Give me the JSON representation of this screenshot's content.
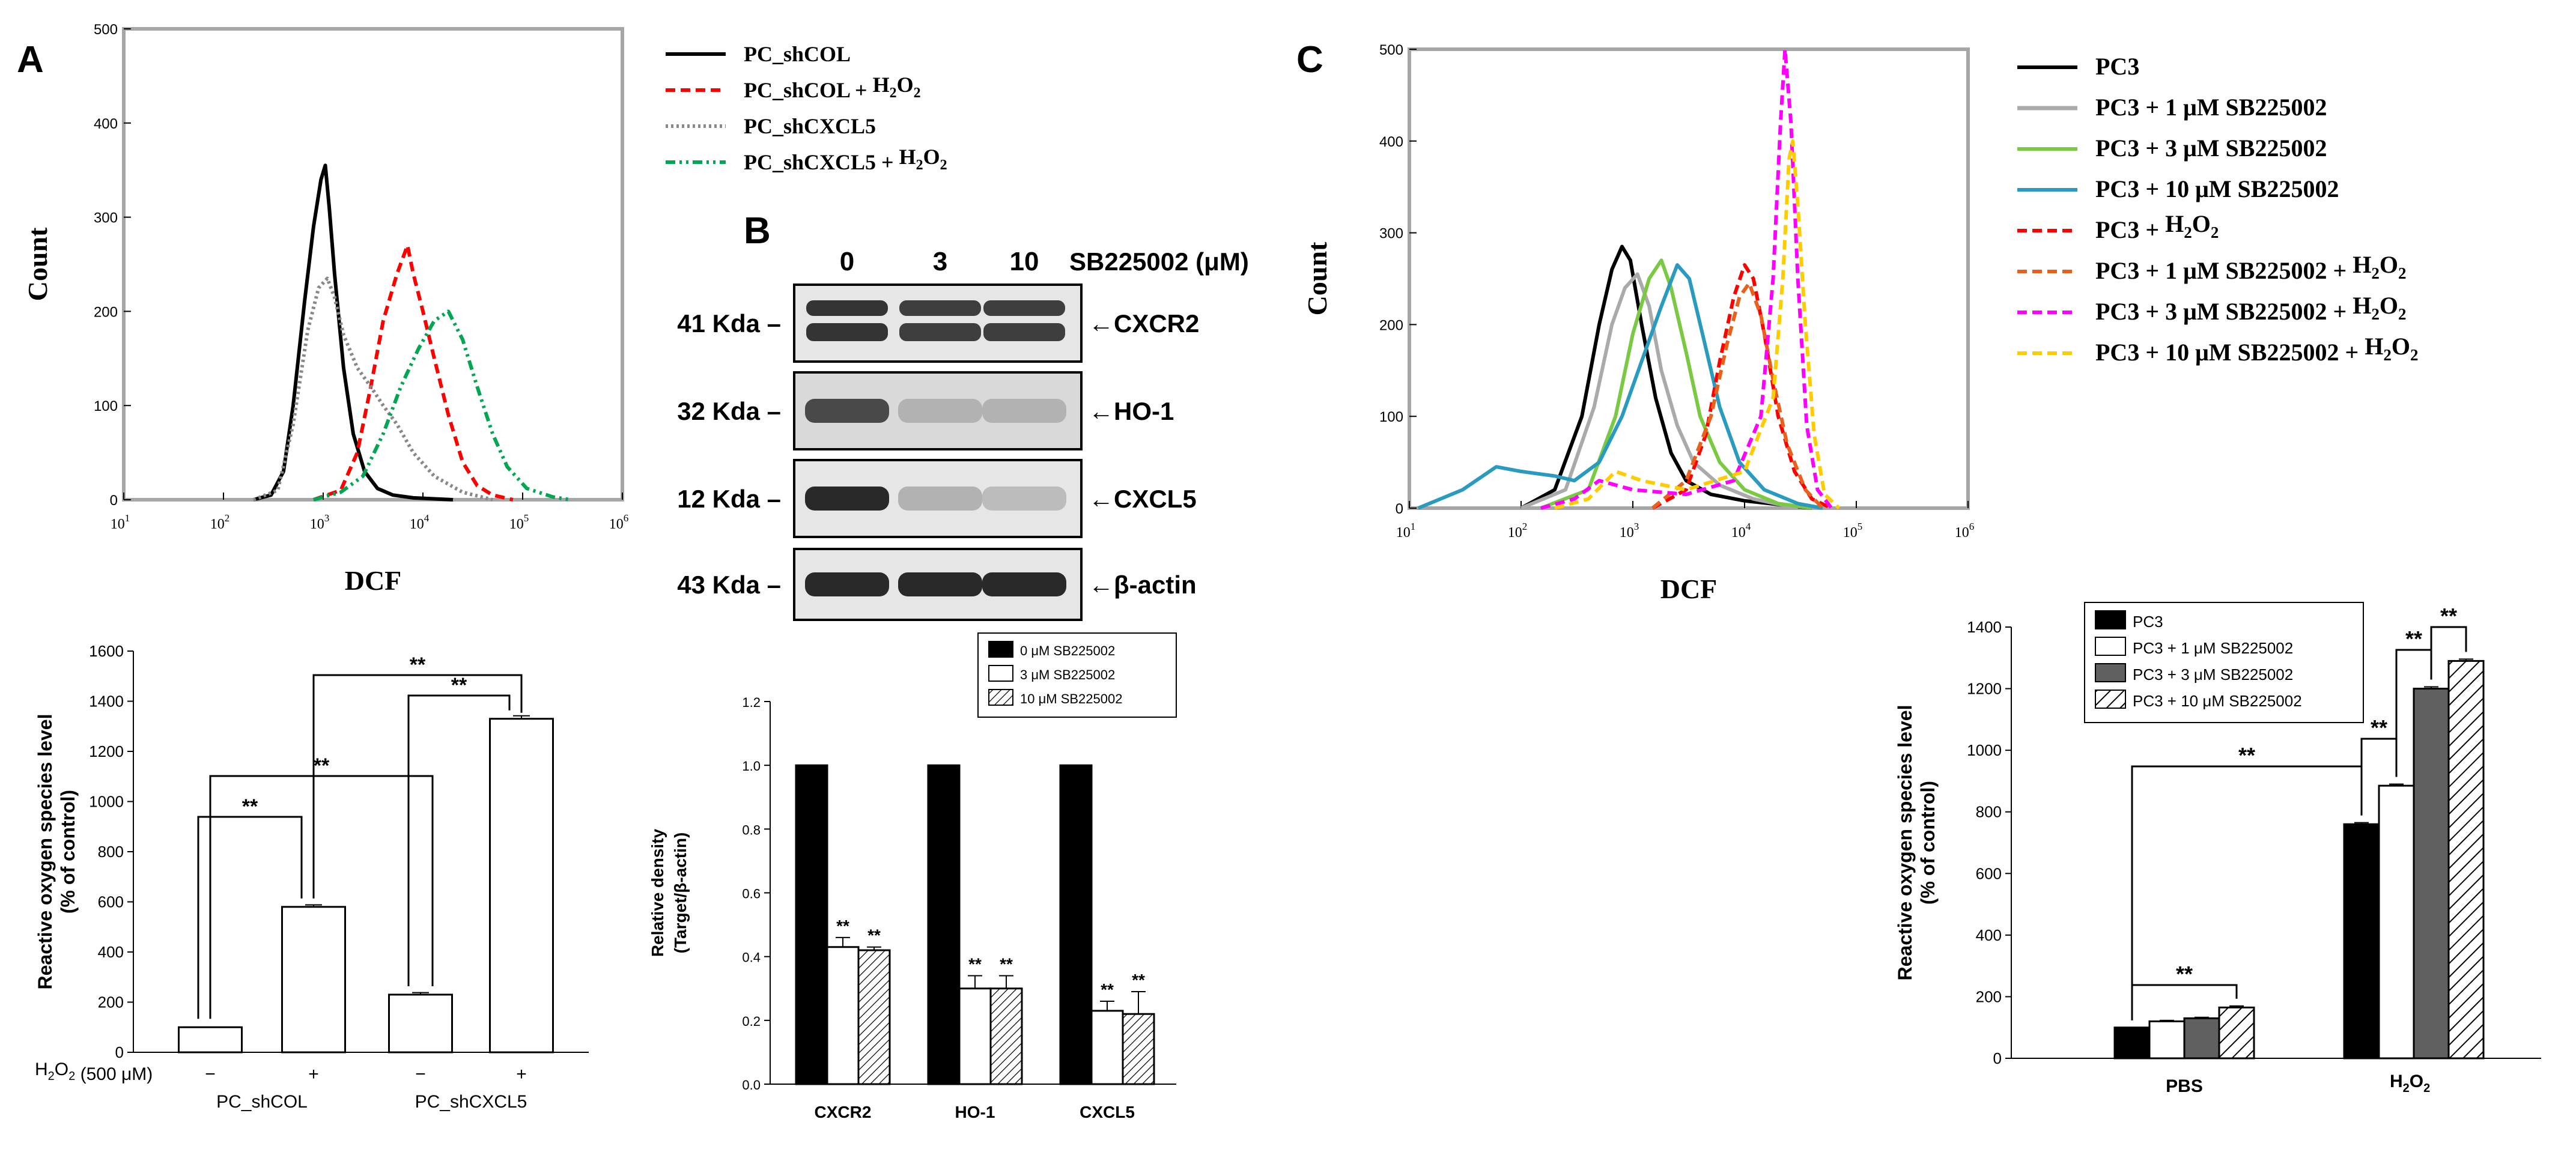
{
  "panel_letters": {
    "a": "A",
    "b": "B",
    "c": "C"
  },
  "colors": {
    "pc_shcol": "#000000",
    "pc_shcol_h2o2": "#ff0000",
    "pc_shcxcl5": "#888888",
    "pc_shcxcl5_h2o2": "#00a651",
    "pc3": "#000000",
    "pc3_1um": "#aaaaaa",
    "pc3_3um": "#7ac943",
    "pc3_10um": "#2a9bbf",
    "pc3_h2o2": "#ff0000",
    "pc3_1um_h2o2": "#e8601c",
    "pc3_3um_h2o2": "#ff00ff",
    "pc3_10um_h2o2": "#ffcc00"
  },
  "western_blot": {
    "header_label": "SB225002 (μM)",
    "lanes": [
      "0",
      "3",
      "10"
    ],
    "rows": [
      {
        "kda": "41 Kda",
        "target": "←CXCR2",
        "band_intensity": [
          0.85,
          0.8,
          0.8
        ]
      },
      {
        "kda": "32 Kda",
        "target": "←HO-1",
        "band_intensity": [
          0.75,
          0.25,
          0.25
        ]
      },
      {
        "kda": "12 Kda",
        "target": "←CXCL5",
        "band_intensity": [
          0.9,
          0.25,
          0.2
        ]
      },
      {
        "kda": "43 Kda",
        "target": "←β-actin",
        "band_intensity": [
          0.9,
          0.9,
          0.9
        ]
      }
    ]
  },
  "chart_data": [
    {
      "id": "A_histogram",
      "type": "line",
      "xlabel": "DCF",
      "ylabel": "Count",
      "x_scale": "log",
      "xlim": [
        10,
        1000000
      ],
      "ylim": [
        0,
        500
      ],
      "x_ticks": [
        10,
        100,
        1000,
        10000,
        100000,
        1000000
      ],
      "y_ticks": [
        0,
        100,
        200,
        300,
        400,
        500
      ],
      "legend_position": "right",
      "series": [
        {
          "name": "PC_shCOL",
          "style": "solid",
          "points": [
            [
              200,
              0
            ],
            [
              300,
              5
            ],
            [
              400,
              30
            ],
            [
              500,
              100
            ],
            [
              650,
              210
            ],
            [
              800,
              290
            ],
            [
              950,
              340
            ],
            [
              1050,
              355
            ],
            [
              1150,
              310
            ],
            [
              1300,
              240
            ],
            [
              1600,
              140
            ],
            [
              2000,
              70
            ],
            [
              2600,
              30
            ],
            [
              3500,
              12
            ],
            [
              5000,
              5
            ],
            [
              8000,
              2
            ],
            [
              20000,
              0
            ]
          ]
        },
        {
          "name": "PC_shCOL + H2O2",
          "style": "dashed",
          "points": [
            [
              800,
              0
            ],
            [
              1500,
              10
            ],
            [
              2200,
              50
            ],
            [
              3000,
              120
            ],
            [
              4000,
              190
            ],
            [
              5500,
              240
            ],
            [
              7000,
              270
            ],
            [
              8000,
              240
            ],
            [
              10000,
              200
            ],
            [
              13000,
              150
            ],
            [
              18000,
              90
            ],
            [
              25000,
              40
            ],
            [
              35000,
              15
            ],
            [
              50000,
              5
            ],
            [
              80000,
              0
            ]
          ]
        },
        {
          "name": "PC_shCXCL5",
          "style": "dotted",
          "points": [
            [
              200,
              0
            ],
            [
              350,
              10
            ],
            [
              500,
              80
            ],
            [
              700,
              180
            ],
            [
              900,
              225
            ],
            [
              1100,
              235
            ],
            [
              1300,
              215
            ],
            [
              1600,
              175
            ],
            [
              2200,
              140
            ],
            [
              3000,
              120
            ],
            [
              4000,
              100
            ],
            [
              5500,
              80
            ],
            [
              8000,
              50
            ],
            [
              13000,
              25
            ],
            [
              25000,
              8
            ],
            [
              50000,
              0
            ]
          ]
        },
        {
          "name": "PC_shCXCL5 + H2O2",
          "style": "dashdot",
          "points": [
            [
              800,
              0
            ],
            [
              1500,
              8
            ],
            [
              2500,
              25
            ],
            [
              4000,
              70
            ],
            [
              6000,
              120
            ],
            [
              9000,
              160
            ],
            [
              13000,
              190
            ],
            [
              18000,
              200
            ],
            [
              25000,
              170
            ],
            [
              35000,
              120
            ],
            [
              50000,
              70
            ],
            [
              70000,
              35
            ],
            [
              110000,
              12
            ],
            [
              200000,
              3
            ],
            [
              300000,
              0
            ]
          ]
        }
      ]
    },
    {
      "id": "A_bar",
      "type": "bar",
      "ylabel": "Reactive oxygen species level (% of control)",
      "ylim": [
        0,
        1600
      ],
      "y_ticks": [
        0,
        200,
        400,
        600,
        800,
        1000,
        1200,
        1400,
        1600
      ],
      "treatment_label": "H2O2 (500 μM)",
      "treatment_signs": [
        "−",
        "+",
        "−",
        "+"
      ],
      "groups": [
        "PC_shCOL",
        "PC_shCXCL5"
      ],
      "values": [
        100,
        580,
        230,
        1330
      ],
      "errors": [
        0,
        8,
        8,
        12
      ],
      "significance": "**"
    },
    {
      "id": "B_density",
      "type": "bar",
      "ylabel": "Relative density (Target/β-actin)",
      "ylim": [
        0,
        1.2
      ],
      "y_ticks": [
        0.0,
        0.2,
        0.4,
        0.6,
        0.8,
        1.0,
        1.2
      ],
      "categories": [
        "CXCR2",
        "HO-1",
        "CXCL5"
      ],
      "legend_position": "top-right",
      "series": [
        {
          "name": "0 μM SB225002",
          "fill": "black",
          "values": [
            1.0,
            1.0,
            1.0
          ],
          "errors": [
            0,
            0,
            0
          ]
        },
        {
          "name": "3 μM SB225002",
          "fill": "white",
          "values": [
            0.43,
            0.3,
            0.23
          ],
          "errors": [
            0.03,
            0.04,
            0.03
          ]
        },
        {
          "name": "10 μM SB225002",
          "fill": "hatch",
          "values": [
            0.42,
            0.3,
            0.22
          ],
          "errors": [
            0.01,
            0.04,
            0.07
          ]
        }
      ],
      "significance": "**"
    },
    {
      "id": "C_histogram",
      "type": "line",
      "xlabel": "DCF",
      "ylabel": "Count",
      "x_scale": "log",
      "xlim": [
        10,
        1000000
      ],
      "ylim": [
        0,
        500
      ],
      "x_ticks": [
        10,
        100,
        1000,
        10000,
        100000,
        1000000
      ],
      "y_ticks": [
        0,
        100,
        200,
        300,
        400,
        500
      ],
      "legend_position": "right",
      "series": [
        {
          "name": "PC3",
          "style": "solid",
          "points": [
            [
              100,
              0
            ],
            [
              200,
              20
            ],
            [
              350,
              100
            ],
            [
              500,
              200
            ],
            [
              650,
              260
            ],
            [
              800,
              285
            ],
            [
              950,
              270
            ],
            [
              1200,
              200
            ],
            [
              1600,
              120
            ],
            [
              2200,
              60
            ],
            [
              3000,
              30
            ],
            [
              5000,
              15
            ],
            [
              10000,
              8
            ],
            [
              20000,
              4
            ],
            [
              40000,
              0
            ]
          ]
        },
        {
          "name": "PC3 + 1 μM SB225002",
          "style": "solid",
          "points": [
            [
              100,
              0
            ],
            [
              250,
              20
            ],
            [
              450,
              110
            ],
            [
              650,
              200
            ],
            [
              850,
              240
            ],
            [
              1100,
              255
            ],
            [
              1400,
              220
            ],
            [
              1800,
              150
            ],
            [
              2500,
              90
            ],
            [
              3500,
              50
            ],
            [
              6000,
              25
            ],
            [
              12000,
              10
            ],
            [
              30000,
              0
            ]
          ]
        },
        {
          "name": "PC3 + 3 μM SB225002",
          "style": "solid",
          "points": [
            [
              150,
              0
            ],
            [
              400,
              20
            ],
            [
              700,
              100
            ],
            [
              1000,
              190
            ],
            [
              1400,
              250
            ],
            [
              1800,
              270
            ],
            [
              2200,
              240
            ],
            [
              3000,
              170
            ],
            [
              4000,
              100
            ],
            [
              6000,
              50
            ],
            [
              10000,
              20
            ],
            [
              20000,
              5
            ],
            [
              40000,
              0
            ]
          ]
        },
        {
          "name": "PC3 + 10 μM SB225002",
          "style": "solid",
          "points": [
            [
              12,
              0
            ],
            [
              30,
              20
            ],
            [
              60,
              45
            ],
            [
              100,
              40
            ],
            [
              200,
              35
            ],
            [
              300,
              30
            ],
            [
              500,
              50
            ],
            [
              800,
              100
            ],
            [
              1200,
              160
            ],
            [
              1800,
              220
            ],
            [
              2500,
              265
            ],
            [
              3200,
              250
            ],
            [
              4200,
              190
            ],
            [
              6000,
              110
            ],
            [
              9000,
              50
            ],
            [
              15000,
              20
            ],
            [
              30000,
              5
            ],
            [
              50000,
              0
            ]
          ]
        },
        {
          "name": "PC3 + H2O2",
          "style": "dashed",
          "points": [
            [
              1500,
              0
            ],
            [
              3000,
              20
            ],
            [
              4500,
              80
            ],
            [
              6000,
              160
            ],
            [
              8000,
              230
            ],
            [
              10000,
              265
            ],
            [
              12000,
              250
            ],
            [
              15000,
              190
            ],
            [
              20000,
              100
            ],
            [
              28000,
              40
            ],
            [
              40000,
              10
            ],
            [
              60000,
              0
            ]
          ]
        },
        {
          "name": "PC3 + 1 μM SB225002 + H2O2",
          "style": "dashed",
          "points": [
            [
              1500,
              0
            ],
            [
              3000,
              30
            ],
            [
              5000,
              100
            ],
            [
              7000,
              180
            ],
            [
              9000,
              230
            ],
            [
              11000,
              245
            ],
            [
              14000,
              210
            ],
            [
              18000,
              140
            ],
            [
              24000,
              70
            ],
            [
              35000,
              20
            ],
            [
              50000,
              0
            ]
          ]
        },
        {
          "name": "PC3 + 3 μM SB225002 + H2O2",
          "style": "dashed",
          "points": [
            [
              150,
              0
            ],
            [
              300,
              10
            ],
            [
              500,
              30
            ],
            [
              1000,
              20
            ],
            [
              3000,
              15
            ],
            [
              8000,
              30
            ],
            [
              14000,
              100
            ],
            [
              18000,
              250
            ],
            [
              21000,
              420
            ],
            [
              23000,
              500
            ],
            [
              26000,
              420
            ],
            [
              30000,
              250
            ],
            [
              36000,
              90
            ],
            [
              45000,
              20
            ],
            [
              60000,
              0
            ]
          ]
        },
        {
          "name": "PC3 + 10 μM SB225002 + H2O2",
          "style": "dashed",
          "points": [
            [
              200,
              0
            ],
            [
              400,
              10
            ],
            [
              700,
              40
            ],
            [
              1200,
              30
            ],
            [
              3000,
              20
            ],
            [
              10000,
              40
            ],
            [
              18000,
              120
            ],
            [
              22000,
              250
            ],
            [
              25000,
              380
            ],
            [
              27000,
              400
            ],
            [
              30000,
              330
            ],
            [
              35000,
              200
            ],
            [
              42000,
              80
            ],
            [
              52000,
              15
            ],
            [
              70000,
              0
            ]
          ]
        }
      ]
    },
    {
      "id": "C_bar",
      "type": "bar",
      "ylabel": "Reactive oxygen species level (% of control)",
      "ylim": [
        0,
        1400
      ],
      "y_ticks": [
        0,
        200,
        400,
        600,
        800,
        1000,
        1200,
        1400
      ],
      "categories": [
        "PBS",
        "H2O2"
      ],
      "legend_position": "top-left",
      "series": [
        {
          "name": "PC3",
          "fill": "black",
          "values": [
            100,
            760
          ],
          "errors": [
            0,
            5
          ]
        },
        {
          "name": "PC3 + 1 μM SB225002",
          "fill": "white",
          "values": [
            120,
            885
          ],
          "errors": [
            3,
            5
          ]
        },
        {
          "name": "PC3 + 3 μM SB225002",
          "fill": "gray",
          "values": [
            130,
            1200
          ],
          "errors": [
            3,
            6
          ]
        },
        {
          "name": "PC3 + 10 μM SB225002",
          "fill": "hatch",
          "values": [
            165,
            1290
          ],
          "errors": [
            5,
            6
          ]
        }
      ],
      "significance": "**"
    }
  ]
}
